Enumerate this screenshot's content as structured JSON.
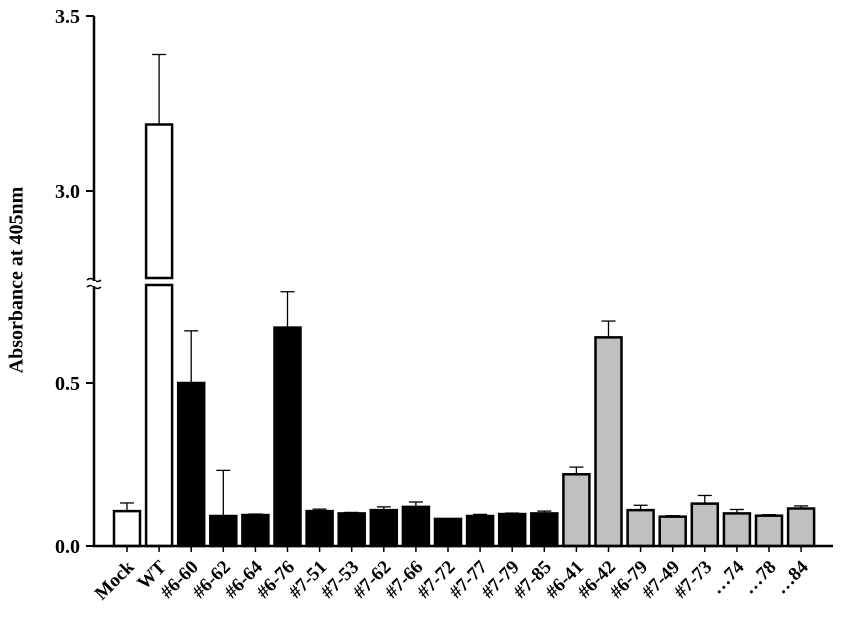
{
  "chart_data": {
    "type": "bar",
    "title": "",
    "xlabel": "",
    "ylabel": "Absorbance at 405nm",
    "y_axis_break": {
      "lower_range": [
        0.0,
        0.8
      ],
      "upper_range": [
        2.8,
        3.5
      ]
    },
    "yticks": [
      {
        "value": 0.0,
        "label": "0.0"
      },
      {
        "value": 0.5,
        "label": "0.5"
      },
      {
        "value": 3.0,
        "label": "3.0"
      },
      {
        "value": 3.5,
        "label": "3.5"
      }
    ],
    "grid": false,
    "legend": null,
    "categories": [
      "Mock",
      "WT",
      "#6-60",
      "#6-62",
      "#6-64",
      "#6-76",
      "#7-51",
      "#7-53",
      "#7-62",
      "#7-66",
      "#7-72",
      "#7-77",
      "#7-79",
      "#7-85",
      "#6-41",
      "#6-42",
      "#6-79",
      "#7-49",
      "#7-73",
      "…74",
      "…78",
      "…84"
    ],
    "values": [
      0.107,
      3.19,
      0.5,
      0.092,
      0.095,
      0.67,
      0.107,
      0.1,
      0.11,
      0.12,
      0.083,
      0.092,
      0.098,
      0.1,
      0.22,
      0.64,
      0.11,
      0.09,
      0.13,
      0.1,
      0.093,
      0.115
    ],
    "errors": [
      0.025,
      0.2,
      0.16,
      0.14,
      0.003,
      0.11,
      0.006,
      0.003,
      0.01,
      0.015,
      0.0,
      0.005,
      0.003,
      0.007,
      0.022,
      0.05,
      0.015,
      0.003,
      0.025,
      0.012,
      0.003,
      0.008
    ],
    "groups": [
      {
        "name": "control",
        "indices": [
          0,
          1
        ],
        "fill": "#ffffff"
      },
      {
        "name": "group-black",
        "indices": [
          2,
          3,
          4,
          5,
          6,
          7,
          8,
          9,
          10,
          11,
          12,
          13
        ],
        "fill": "#000000"
      },
      {
        "name": "group-gray",
        "indices": [
          14,
          15,
          16,
          17,
          18,
          19,
          20,
          21
        ],
        "fill": "#c0c0c0"
      }
    ]
  },
  "ylabel": "Absorbance at 405nm"
}
